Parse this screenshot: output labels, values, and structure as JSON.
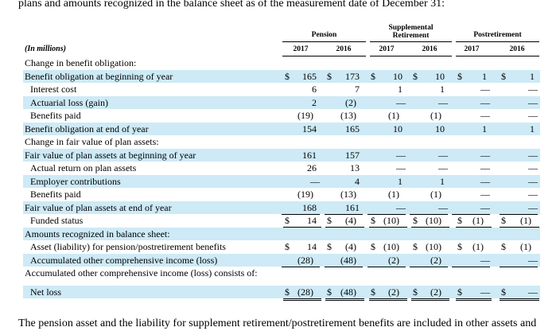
{
  "intro_text": "plans and amounts recognized in the balance sheet as of the measurement date of December 31:",
  "outro_text": "The pension asset and the liability for supplement retirement/postretirement benefits are included in other assets and",
  "units_label": "(In millions)",
  "groups": [
    {
      "label": "Pension",
      "years": [
        "2017",
        "2016"
      ]
    },
    {
      "label": "Supplemental Retirement",
      "years": [
        "2017",
        "2016"
      ]
    },
    {
      "label": "Postretirement",
      "years": [
        "2017",
        "2016"
      ]
    }
  ],
  "currency_symbol": "$",
  "rows": [
    {
      "label": "Change in benefit obligation:",
      "indent": 0,
      "shaded": false,
      "values": null
    },
    {
      "label": "Benefit obligation at beginning of year",
      "indent": 0,
      "shaded": true,
      "dollar": true,
      "values": [
        "165",
        "173",
        "10",
        "10",
        "1",
        "1"
      ]
    },
    {
      "label": "Interest cost",
      "indent": 1,
      "shaded": false,
      "values": [
        "6",
        "7",
        "1",
        "1",
        "—",
        "—"
      ]
    },
    {
      "label": "Actuarial loss (gain)",
      "indent": 1,
      "shaded": true,
      "values": [
        "2",
        "(2)",
        "—",
        "—",
        "—",
        "—"
      ]
    },
    {
      "label": "Benefits paid",
      "indent": 1,
      "shaded": false,
      "values": [
        "(19)",
        "(13)",
        "(1)",
        "(1)",
        "—",
        "—"
      ],
      "underline": true
    },
    {
      "label": "Benefit obligation at end of year",
      "indent": 0,
      "shaded": true,
      "values": [
        "154",
        "165",
        "10",
        "10",
        "1",
        "1"
      ]
    },
    {
      "label": "Change in fair value of plan assets:",
      "indent": 0,
      "shaded": false,
      "values": null
    },
    {
      "label": "Fair value of plan assets at beginning of year",
      "indent": 0,
      "shaded": true,
      "values": [
        "161",
        "157",
        "—",
        "—",
        "—",
        "—"
      ]
    },
    {
      "label": "Actual return on plan assets",
      "indent": 1,
      "shaded": false,
      "values": [
        "26",
        "13",
        "—",
        "—",
        "—",
        "—"
      ]
    },
    {
      "label": "Employer contributions",
      "indent": 1,
      "shaded": true,
      "values": [
        "—",
        "4",
        "1",
        "1",
        "—",
        "—"
      ]
    },
    {
      "label": "Benefits paid",
      "indent": 1,
      "shaded": false,
      "values": [
        "(19)",
        "(13)",
        "(1)",
        "(1)",
        "—",
        "—"
      ],
      "underline": true
    },
    {
      "label": "Fair value of plan assets at end of year",
      "indent": 0,
      "shaded": true,
      "values": [
        "168",
        "161",
        "—",
        "—",
        "—",
        "—"
      ],
      "underline": true
    },
    {
      "label": "Funded status",
      "indent": 1,
      "shaded": false,
      "dollar": true,
      "values": [
        "14",
        "(4)",
        "(10)",
        "(10)",
        "(1)",
        "(1)"
      ],
      "double_underline": true
    },
    {
      "label": "Amounts recognized in balance sheet:",
      "indent": 0,
      "shaded": true,
      "values": null
    },
    {
      "label": "Asset (liability) for pension/postretirement benefits",
      "indent": 1,
      "shaded": false,
      "dollar": true,
      "values": [
        "14",
        "(4)",
        "(10)",
        "(10)",
        "(1)",
        "(1)"
      ]
    },
    {
      "label": "Accumulated other comprehensive income (loss)",
      "indent": 1,
      "shaded": true,
      "values": [
        "(28)",
        "(48)",
        "(2)",
        "(2)",
        "—",
        "—"
      ],
      "underline": true
    },
    {
      "label": "Accumulated other comprehensive income (loss) consists of:",
      "indent": 0,
      "shaded": false,
      "values": null
    },
    {
      "label": "Net loss",
      "indent": 1,
      "shaded": true,
      "dollar": true,
      "values": [
        "(28)",
        "(48)",
        "(2)",
        "(2)",
        "—",
        "—"
      ],
      "double_underline": true
    }
  ]
}
